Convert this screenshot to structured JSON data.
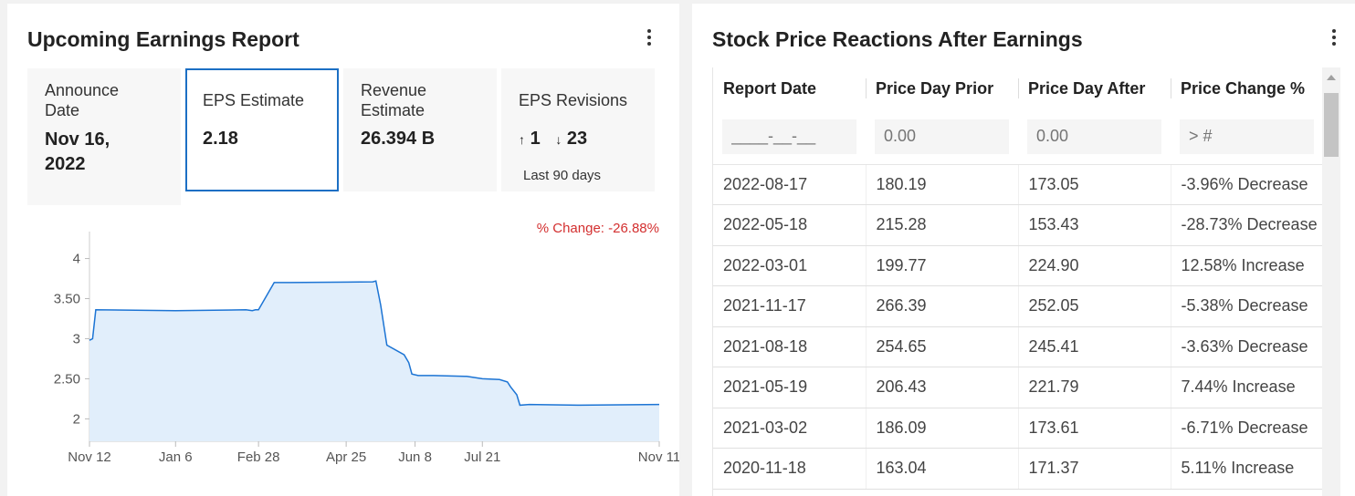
{
  "left": {
    "title": "Upcoming Earnings Report",
    "menu_icon": "kebab-menu-icon",
    "stats": {
      "announce": {
        "label": "Announce Date",
        "value": "Nov 16, 2022"
      },
      "eps": {
        "label": "EPS Estimate",
        "value": "2.18"
      },
      "revenue": {
        "label": "Revenue Estimate",
        "value": "26.394 B"
      },
      "revisions": {
        "label": "EPS Revisions",
        "up": "1",
        "down": "23",
        "note": "Last 90 days"
      }
    },
    "pct_change": "% Change: -26.88%"
  },
  "chart_data": {
    "type": "area",
    "x": [
      "Nov 12",
      "Nov 14",
      "Nov 16",
      "Jan 6",
      "Feb 20",
      "Feb 24",
      "Feb 26",
      "Feb 28",
      "Mar 10",
      "Mar 20",
      "May 12",
      "May 14",
      "May 17",
      "May 21",
      "Jun 1",
      "Jun 4",
      "Jun 6",
      "Jun 10",
      "Jun 20",
      "Jul 11",
      "Jul 21",
      "Aug 1",
      "Aug 6",
      "Aug 8",
      "Aug 12",
      "Aug 14",
      "Aug 20",
      "Sep 20",
      "Nov 11"
    ],
    "values": [
      2.98,
      3.0,
      3.36,
      3.35,
      3.36,
      3.35,
      3.36,
      3.36,
      3.7,
      3.7,
      3.71,
      3.72,
      3.42,
      2.92,
      2.8,
      2.7,
      2.56,
      2.54,
      2.54,
      2.53,
      2.5,
      2.49,
      2.46,
      2.4,
      2.3,
      2.17,
      2.18,
      2.17,
      2.18
    ],
    "xticks": [
      "Nov 12",
      "Jan 6",
      "Feb 28",
      "Apr 25",
      "Jun 8",
      "Jul 21",
      "Nov 11"
    ],
    "yticks": [
      "2",
      "2.50",
      "3",
      "3.50",
      "4"
    ],
    "ylim": [
      1.72,
      4.45
    ],
    "line_color": "#1c74d4",
    "fill_color": "#e1eefb",
    "grid": false
  },
  "right": {
    "title": "Stock Price Reactions After Earnings",
    "menu_icon": "kebab-menu-icon",
    "columns": [
      "Report Date",
      "Price Day Prior",
      "Price Day After",
      "Price Change %"
    ],
    "filters": [
      "____-__-__",
      "0.00",
      "0.00",
      "> #"
    ],
    "rows": [
      {
        "date": "2022-08-17",
        "prior": "180.19",
        "after": "173.05",
        "change": "-3.96% Decrease",
        "dir": "neg"
      },
      {
        "date": "2022-05-18",
        "prior": "215.28",
        "after": "153.43",
        "change": "-28.73% Decrease",
        "dir": "neg"
      },
      {
        "date": "2022-03-01",
        "prior": "199.77",
        "after": "224.90",
        "change": "12.58% Increase",
        "dir": "pos"
      },
      {
        "date": "2021-11-17",
        "prior": "266.39",
        "after": "252.05",
        "change": "-5.38% Decrease",
        "dir": "neg"
      },
      {
        "date": "2021-08-18",
        "prior": "254.65",
        "after": "245.41",
        "change": "-3.63% Decrease",
        "dir": "neg"
      },
      {
        "date": "2021-05-19",
        "prior": "206.43",
        "after": "221.79",
        "change": "7.44% Increase",
        "dir": "pos"
      },
      {
        "date": "2021-03-02",
        "prior": "186.09",
        "after": "173.61",
        "change": "-6.71% Decrease",
        "dir": "neg"
      },
      {
        "date": "2020-11-18",
        "prior": "163.04",
        "after": "171.37",
        "change": "5.11% Increase",
        "dir": "pos"
      }
    ],
    "colors": {
      "neg": "#d32f2f",
      "pos": "#2e8b22"
    }
  }
}
